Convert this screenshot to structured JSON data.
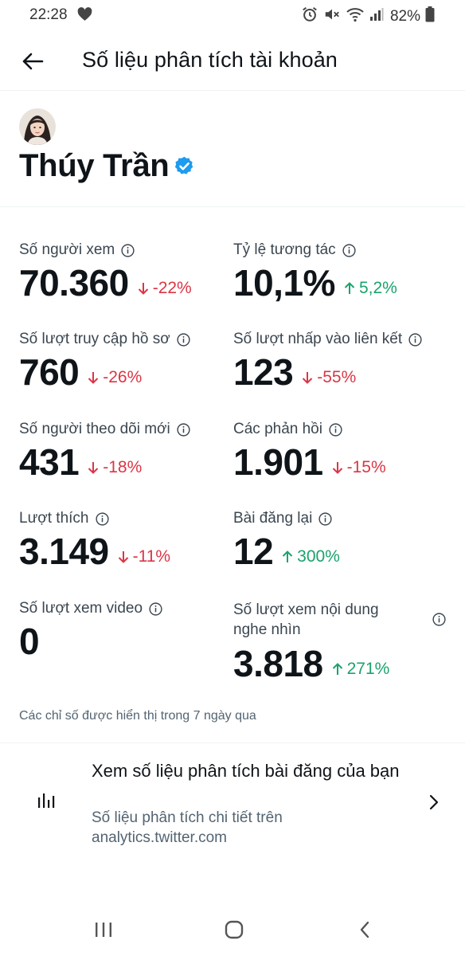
{
  "status_bar": {
    "time": "22:28",
    "battery": "82%",
    "icons": [
      "heart-icon",
      "alarm-icon",
      "mute-icon",
      "wifi-icon",
      "signal-icon",
      "battery-icon"
    ]
  },
  "header": {
    "title": "Số liệu phân tích tài khoản",
    "back_icon": "arrow-left-icon"
  },
  "profile": {
    "name": "Thúy Trần",
    "verified_icon": "verified-badge-icon"
  },
  "metrics": [
    {
      "label": "Số người xem",
      "value": "70.360",
      "change": "-22%",
      "direction": "down"
    },
    {
      "label": "Tỷ lệ tương tác",
      "value": "10,1%",
      "change": "5,2%",
      "direction": "up"
    },
    {
      "label": "Số lượt truy cập hồ sơ",
      "value": "760",
      "change": "-26%",
      "direction": "down"
    },
    {
      "label": "Số lượt nhấp vào liên kết",
      "value": "123",
      "change": "-55%",
      "direction": "down"
    },
    {
      "label": "Số người theo dõi mới",
      "value": "431",
      "change": "-18%",
      "direction": "down"
    },
    {
      "label": "Các phản hồi",
      "value": "1.901",
      "change": "-15%",
      "direction": "down"
    },
    {
      "label": "Lượt thích",
      "value": "3.149",
      "change": "-11%",
      "direction": "down"
    },
    {
      "label": "Bài đăng lại",
      "value": "12",
      "change": "300%",
      "direction": "up"
    },
    {
      "label": "Số lượt xem video",
      "value": "0",
      "change": "",
      "direction": "none"
    },
    {
      "label": "Số lượt xem nội dung nghe nhìn",
      "value": "3.818",
      "change": "271%",
      "direction": "up"
    }
  ],
  "footnote": "Các chỉ số được hiển thị trong 7 ngày qua",
  "post_analytics": {
    "title": "Xem số liệu phân tích bài đăng của bạn",
    "subtitle": "Số liệu phân tích chi tiết trên analytics.twitter.com"
  },
  "colors": {
    "down": "#dc3545",
    "up": "#1aa36c",
    "verified": "#1d9bf0"
  }
}
